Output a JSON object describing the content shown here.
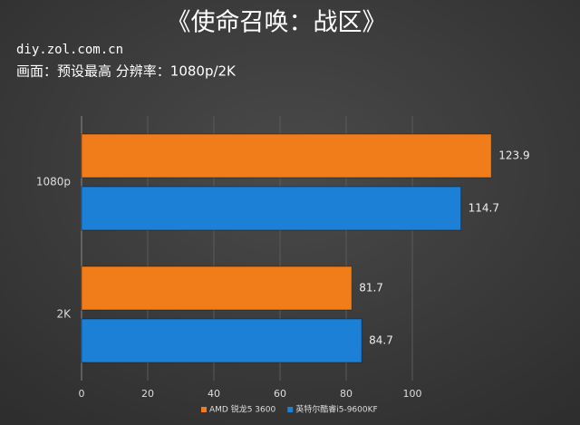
{
  "chart_data": {
    "type": "bar",
    "orientation": "horizontal",
    "title": "《使命召唤：战区》",
    "subtitle": "diy.zol.com.cn",
    "annotation": "画面：预设最高   分辨率：1080p/2K",
    "categories": [
      "1080p",
      "2K"
    ],
    "series": [
      {
        "name": "AMD 锐龙5 3600",
        "color": "#f07c1a",
        "values": [
          123.9,
          81.7
        ]
      },
      {
        "name": "英特尔酷睿i5-9600KF",
        "color": "#1c80d6",
        "values": [
          114.7,
          84.7
        ]
      }
    ],
    "xlim": [
      0,
      140
    ],
    "xticks": [
      0,
      20,
      40,
      60,
      80,
      100
    ],
    "grid": true,
    "legend": "bottom"
  }
}
